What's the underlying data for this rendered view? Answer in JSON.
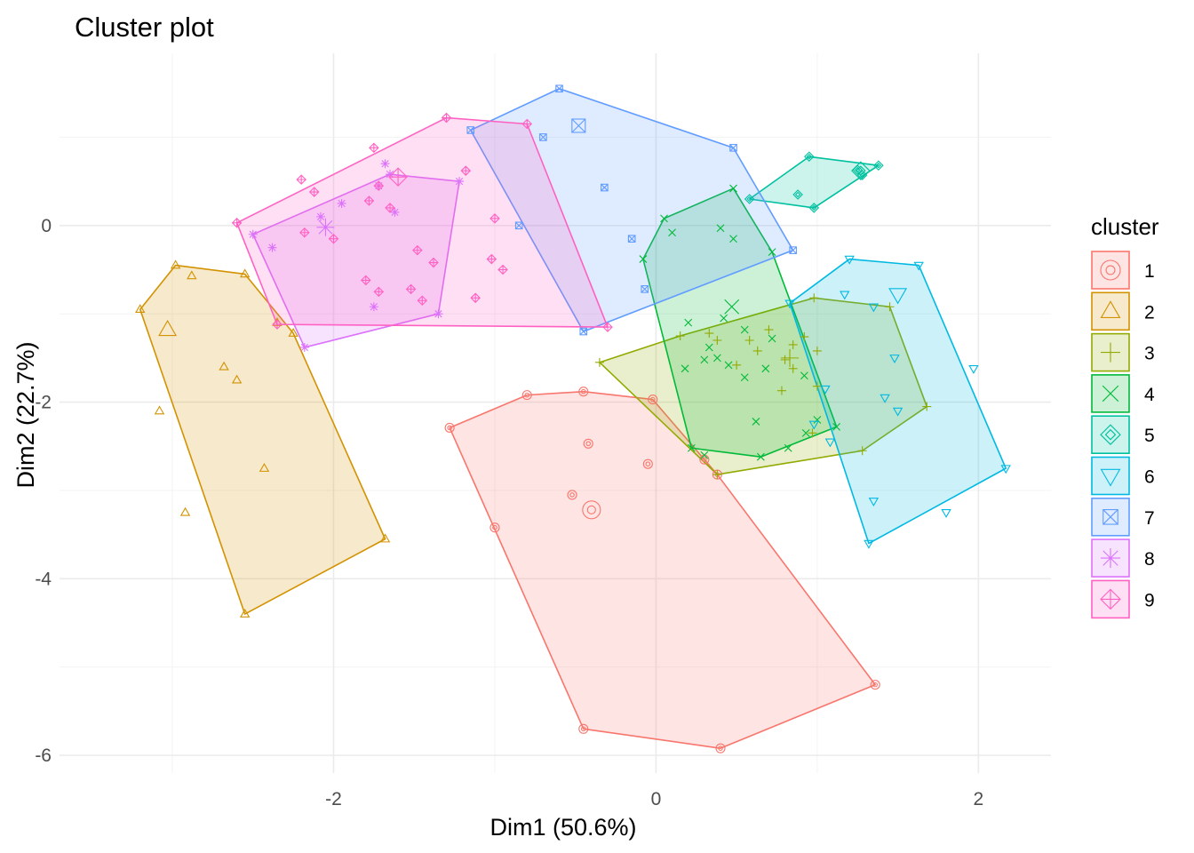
{
  "chart_data": {
    "type": "scatter",
    "title": "Cluster plot",
    "xlabel": "Dim1 (50.6%)",
    "ylabel": "Dim2 (22.7%)",
    "xlim": [
      -3.7,
      2.45
    ],
    "ylim": [
      -6.2,
      1.95
    ],
    "xticks": [
      -2,
      0,
      2
    ],
    "xtick_labels": [
      "-2",
      "0",
      "2"
    ],
    "yticks": [
      -6,
      -4,
      -2,
      0
    ],
    "ytick_labels": [
      "-6",
      "-4",
      "-2",
      "0"
    ],
    "grid": true,
    "legend": {
      "title": "cluster",
      "position": "right"
    },
    "clusters": [
      {
        "name": "1",
        "color": "#F8766D",
        "shape": "circle",
        "hull": [
          [
            -0.8,
            -1.92
          ],
          [
            -0.45,
            -1.88
          ],
          [
            -0.02,
            -1.97
          ],
          [
            0.38,
            -2.82
          ],
          [
            1.36,
            -5.2
          ],
          [
            0.4,
            -5.92
          ],
          [
            -0.45,
            -5.7
          ],
          [
            -1.28,
            -2.29
          ]
        ],
        "points": [
          [
            -0.8,
            -1.92
          ],
          [
            -0.45,
            -1.88
          ],
          [
            -0.02,
            -1.97
          ],
          [
            0.3,
            -2.65
          ],
          [
            0.38,
            -2.82
          ],
          [
            1.36,
            -5.2
          ],
          [
            0.4,
            -5.92
          ],
          [
            -0.45,
            -5.7
          ],
          [
            -1.28,
            -2.29
          ],
          [
            -0.42,
            -2.47
          ],
          [
            -0.05,
            -2.7
          ],
          [
            -0.52,
            -3.05
          ],
          [
            -1.0,
            -3.42
          ]
        ],
        "center": [
          -0.4,
          -3.22
        ]
      },
      {
        "name": "2",
        "color": "#D39200",
        "shape": "triangle",
        "hull": [
          [
            -3.2,
            -0.95
          ],
          [
            -2.98,
            -0.45
          ],
          [
            -2.55,
            -0.55
          ],
          [
            -2.25,
            -1.22
          ],
          [
            -1.68,
            -3.55
          ],
          [
            -2.55,
            -4.4
          ]
        ],
        "points": [
          [
            -3.2,
            -0.95
          ],
          [
            -2.98,
            -0.45
          ],
          [
            -2.55,
            -0.55
          ],
          [
            -2.25,
            -1.22
          ],
          [
            -1.68,
            -3.55
          ],
          [
            -2.55,
            -4.4
          ],
          [
            -2.88,
            -0.57
          ],
          [
            -2.68,
            -1.6
          ],
          [
            -2.6,
            -1.75
          ],
          [
            -3.08,
            -2.1
          ],
          [
            -2.43,
            -2.75
          ],
          [
            -2.92,
            -3.25
          ],
          [
            -2.35,
            -1.1
          ]
        ],
        "center": [
          -3.03,
          -1.18
        ]
      },
      {
        "name": "3",
        "color": "#93AA00",
        "shape": "plus",
        "hull": [
          [
            -0.35,
            -1.55
          ],
          [
            0.15,
            -1.25
          ],
          [
            0.98,
            -0.82
          ],
          [
            1.45,
            -0.92
          ],
          [
            1.68,
            -2.05
          ],
          [
            1.28,
            -2.55
          ],
          [
            0.38,
            -2.82
          ]
        ],
        "points": [
          [
            -0.35,
            -1.55
          ],
          [
            0.15,
            -1.25
          ],
          [
            0.98,
            -0.82
          ],
          [
            1.45,
            -0.92
          ],
          [
            1.68,
            -2.05
          ],
          [
            1.28,
            -2.55
          ],
          [
            0.38,
            -2.82
          ],
          [
            0.33,
            -1.22
          ],
          [
            0.58,
            -1.3
          ],
          [
            0.85,
            -1.35
          ],
          [
            0.7,
            -1.18
          ],
          [
            0.38,
            -1.3
          ],
          [
            0.63,
            -1.42
          ],
          [
            0.5,
            -1.58
          ],
          [
            0.85,
            -1.62
          ],
          [
            0.78,
            -1.87
          ],
          [
            0.8,
            -1.52
          ],
          [
            0.92,
            -1.26
          ],
          [
            1.0,
            -1.42
          ],
          [
            1.0,
            -1.82
          ],
          [
            0.97,
            -2.35
          ]
        ],
        "center": [
          0.83,
          -1.5
        ]
      },
      {
        "name": "4",
        "color": "#00BA38",
        "shape": "x",
        "hull": [
          [
            0.05,
            0.08
          ],
          [
            0.48,
            0.42
          ],
          [
            0.72,
            -0.3
          ],
          [
            1.12,
            -2.28
          ],
          [
            0.65,
            -2.62
          ],
          [
            0.22,
            -2.52
          ],
          [
            -0.08,
            -0.38
          ]
        ],
        "points": [
          [
            0.05,
            0.08
          ],
          [
            0.48,
            0.42
          ],
          [
            0.72,
            -0.3
          ],
          [
            1.12,
            -2.28
          ],
          [
            0.65,
            -2.62
          ],
          [
            0.22,
            -2.52
          ],
          [
            -0.08,
            -0.38
          ],
          [
            0.1,
            -0.08
          ],
          [
            0.4,
            -0.03
          ],
          [
            0.48,
            -0.15
          ],
          [
            0.2,
            -1.1
          ],
          [
            0.42,
            -1.05
          ],
          [
            0.55,
            -1.18
          ],
          [
            0.33,
            -1.38
          ],
          [
            0.18,
            -1.62
          ],
          [
            0.3,
            -1.52
          ],
          [
            0.38,
            -1.5
          ],
          [
            0.45,
            -1.58
          ],
          [
            0.72,
            -1.28
          ],
          [
            0.55,
            -1.72
          ],
          [
            0.68,
            -1.62
          ],
          [
            0.92,
            -1.7
          ],
          [
            0.62,
            -2.22
          ],
          [
            1.0,
            -2.2
          ],
          [
            0.3,
            -2.6
          ],
          [
            0.82,
            -2.52
          ],
          [
            0.93,
            -2.35
          ]
        ],
        "center": [
          0.47,
          -0.92
        ]
      },
      {
        "name": "5",
        "color": "#00C19F",
        "shape": "diamond",
        "hull": [
          [
            0.58,
            0.3
          ],
          [
            0.95,
            0.78
          ],
          [
            1.38,
            0.68
          ],
          [
            0.98,
            0.2
          ]
        ],
        "points": [
          [
            0.58,
            0.3
          ],
          [
            0.95,
            0.78
          ],
          [
            1.38,
            0.68
          ],
          [
            0.98,
            0.2
          ],
          [
            0.88,
            0.35
          ],
          [
            1.25,
            0.63
          ],
          [
            1.28,
            0.57
          ]
        ],
        "center": [
          1.27,
          0.62
        ]
      },
      {
        "name": "6",
        "color": "#00B9E3",
        "shape": "triangle-down",
        "hull": [
          [
            0.83,
            -0.88
          ],
          [
            1.2,
            -0.38
          ],
          [
            1.63,
            -0.45
          ],
          [
            2.17,
            -2.75
          ],
          [
            1.32,
            -3.6
          ]
        ],
        "points": [
          [
            0.83,
            -0.88
          ],
          [
            1.2,
            -0.38
          ],
          [
            1.63,
            -0.45
          ],
          [
            2.17,
            -2.75
          ],
          [
            1.32,
            -3.6
          ],
          [
            1.17,
            -0.78
          ],
          [
            1.35,
            -0.92
          ],
          [
            1.48,
            -1.5
          ],
          [
            1.42,
            -1.95
          ],
          [
            1.5,
            -2.1
          ],
          [
            1.05,
            -1.85
          ],
          [
            1.08,
            -2.45
          ],
          [
            0.98,
            -2.25
          ],
          [
            1.35,
            -3.12
          ],
          [
            1.8,
            -3.25
          ],
          [
            1.97,
            -1.62
          ]
        ],
        "center": [
          1.5,
          -0.78
        ]
      },
      {
        "name": "7",
        "color": "#619CFF",
        "shape": "square-cross",
        "hull": [
          [
            -0.6,
            1.55
          ],
          [
            0.48,
            0.88
          ],
          [
            0.85,
            -0.28
          ],
          [
            -0.45,
            -1.2
          ],
          [
            -1.15,
            1.08
          ]
        ],
        "points": [
          [
            -0.6,
            1.55
          ],
          [
            0.48,
            0.88
          ],
          [
            0.85,
            -0.28
          ],
          [
            -0.45,
            -1.2
          ],
          [
            -1.15,
            1.08
          ],
          [
            -0.7,
            1.0
          ],
          [
            -0.32,
            0.43
          ],
          [
            -0.15,
            -0.15
          ],
          [
            -0.85,
            0.0
          ],
          [
            -0.07,
            -0.72
          ]
        ],
        "center": [
          -0.48,
          1.13
        ]
      },
      {
        "name": "8",
        "color": "#DB72FB",
        "shape": "asterisk",
        "hull": [
          [
            -2.5,
            -0.1
          ],
          [
            -1.65,
            0.58
          ],
          [
            -1.22,
            0.5
          ],
          [
            -1.35,
            -1.0
          ],
          [
            -2.18,
            -1.38
          ]
        ],
        "points": [
          [
            -2.5,
            -0.1
          ],
          [
            -1.65,
            0.58
          ],
          [
            -1.22,
            0.5
          ],
          [
            -1.35,
            -1.0
          ],
          [
            -2.18,
            -1.38
          ],
          [
            -2.08,
            0.1
          ],
          [
            -1.95,
            0.25
          ],
          [
            -2.38,
            -0.25
          ],
          [
            -1.72,
            0.45
          ],
          [
            -1.62,
            0.15
          ],
          [
            -1.68,
            0.7
          ],
          [
            -1.75,
            -0.92
          ]
        ],
        "center": [
          -2.05,
          -0.02
        ]
      },
      {
        "name": "9",
        "color": "#FF61C3",
        "shape": "crossed-diamond",
        "hull": [
          [
            -2.6,
            0.03
          ],
          [
            -1.3,
            1.22
          ],
          [
            -0.8,
            1.15
          ],
          [
            -0.3,
            -1.15
          ],
          [
            -2.35,
            -1.12
          ]
        ],
        "points": [
          [
            -2.6,
            0.03
          ],
          [
            -2.2,
            0.52
          ],
          [
            -1.75,
            0.88
          ],
          [
            -1.3,
            1.22
          ],
          [
            -0.8,
            1.15
          ],
          [
            -0.3,
            -1.15
          ],
          [
            -2.35,
            -1.12
          ],
          [
            -2.12,
            0.38
          ],
          [
            -1.72,
            0.45
          ],
          [
            -1.78,
            0.28
          ],
          [
            -1.65,
            0.2
          ],
          [
            -2.18,
            -0.08
          ],
          [
            -2.0,
            -0.15
          ],
          [
            -1.8,
            -0.62
          ],
          [
            -1.72,
            -0.75
          ],
          [
            -1.48,
            -0.28
          ],
          [
            -1.38,
            -0.42
          ],
          [
            -1.52,
            -0.72
          ],
          [
            -1.45,
            -0.85
          ],
          [
            -1.18,
            0.62
          ],
          [
            -1.0,
            0.08
          ],
          [
            -1.02,
            -0.38
          ],
          [
            -0.95,
            -0.5
          ],
          [
            -1.12,
            -0.82
          ]
        ],
        "center": [
          -1.6,
          0.55
        ]
      }
    ]
  }
}
